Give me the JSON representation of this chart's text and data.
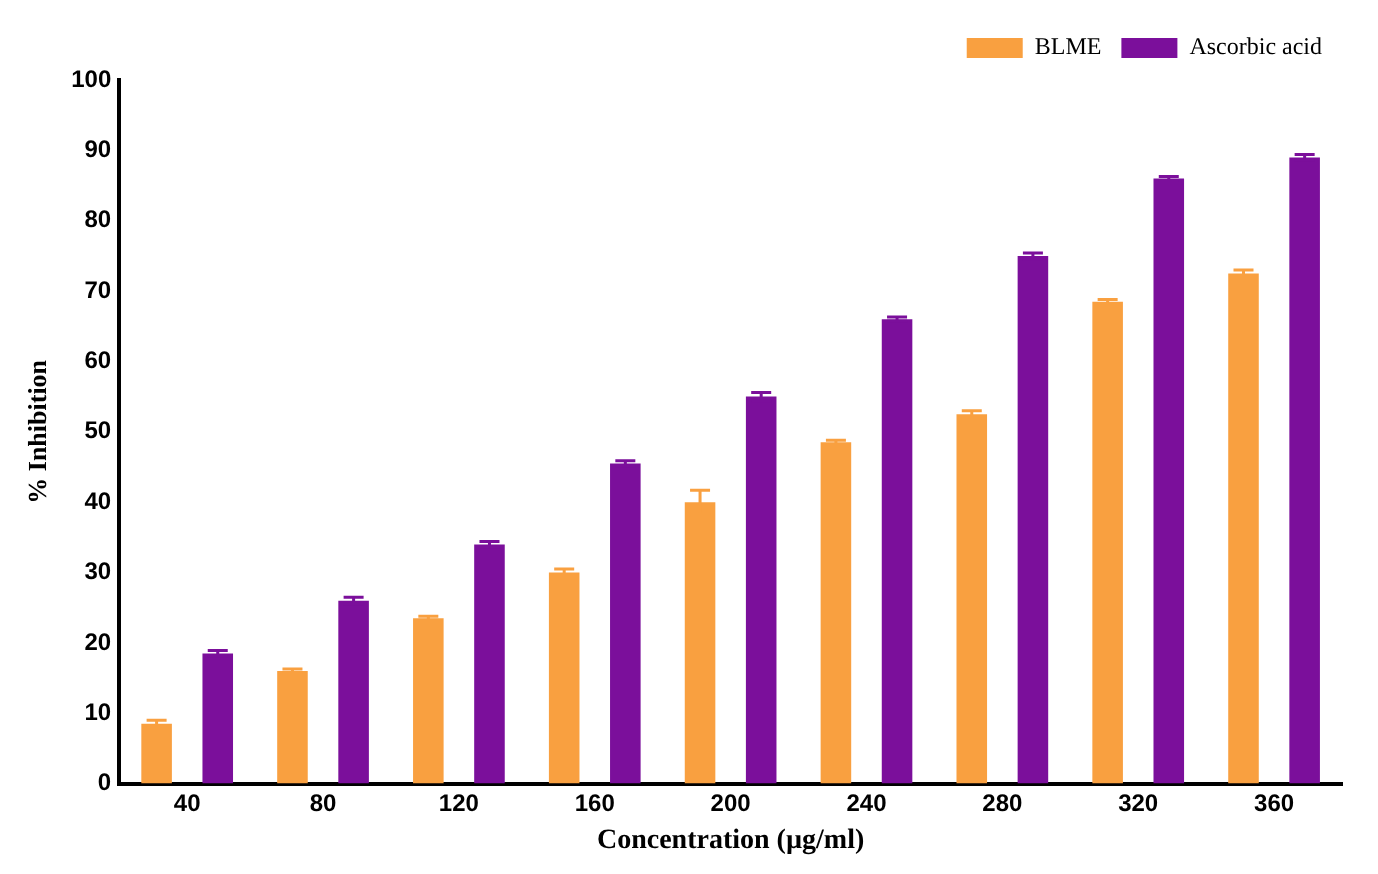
{
  "chart_data": {
    "type": "bar",
    "xlabel": "Concentration (µg/ml)",
    "ylabel": "% Inhibition",
    "categories": [
      "40",
      "80",
      "120",
      "160",
      "200",
      "240",
      "280",
      "320",
      "360"
    ],
    "series": [
      {
        "name": "BLME",
        "color": "#f9a040",
        "values": [
          8.5,
          16,
          23.5,
          30,
          40,
          48.5,
          52.5,
          68.5,
          72.5
        ],
        "errors": [
          0.5,
          0.3,
          0.3,
          0.5,
          1.7,
          0.3,
          0.5,
          0.3,
          0.5
        ]
      },
      {
        "name": "Ascorbic acid",
        "color": "#7b0f9b",
        "values": [
          18.5,
          26,
          34,
          45.5,
          55,
          66,
          75,
          86,
          89
        ],
        "errors": [
          0.4,
          0.5,
          0.4,
          0.4,
          0.6,
          0.3,
          0.4,
          0.3,
          0.4
        ]
      }
    ],
    "ylim": [
      0,
      100
    ],
    "yticks": [
      0,
      10,
      20,
      30,
      40,
      50,
      60,
      70,
      80,
      90,
      100
    ],
    "grid": false,
    "legend": "top right"
  }
}
